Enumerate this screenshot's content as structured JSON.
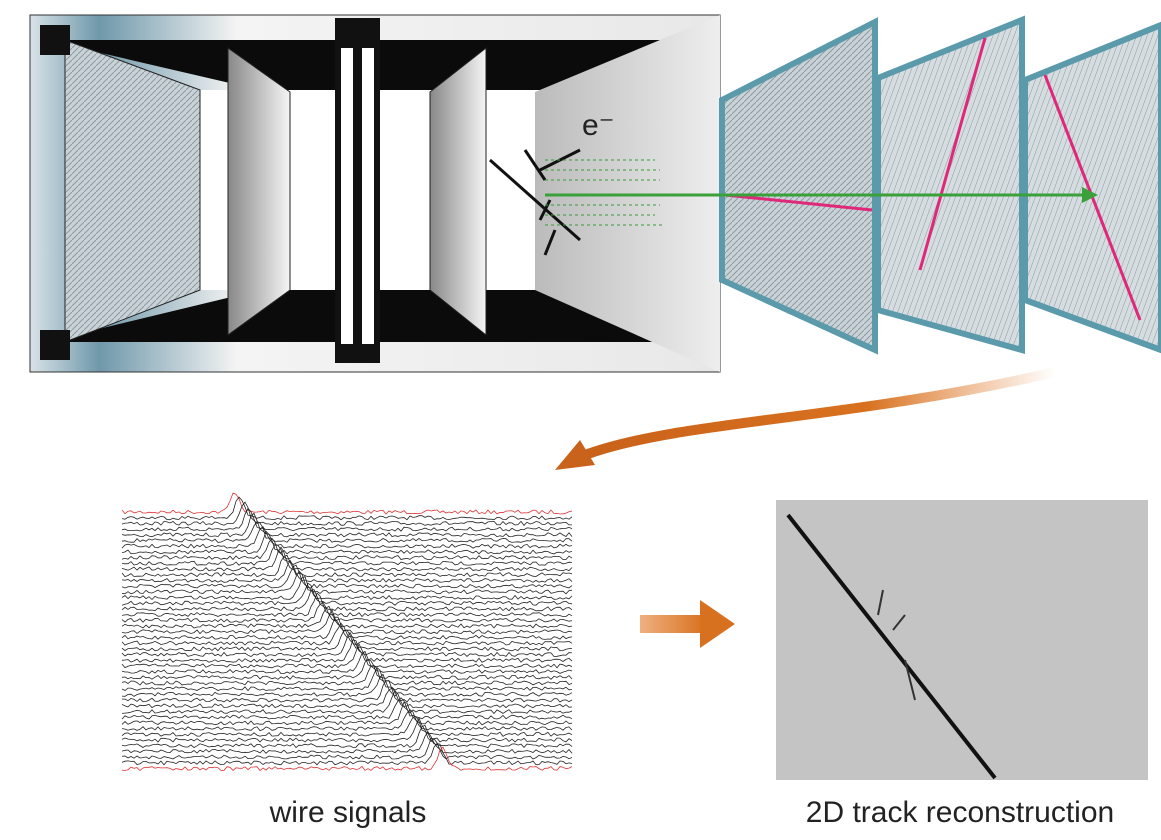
{
  "labels": {
    "electron": "e⁻",
    "wire_signals": "wire signals",
    "track": "2D track reconstruction"
  }
}
